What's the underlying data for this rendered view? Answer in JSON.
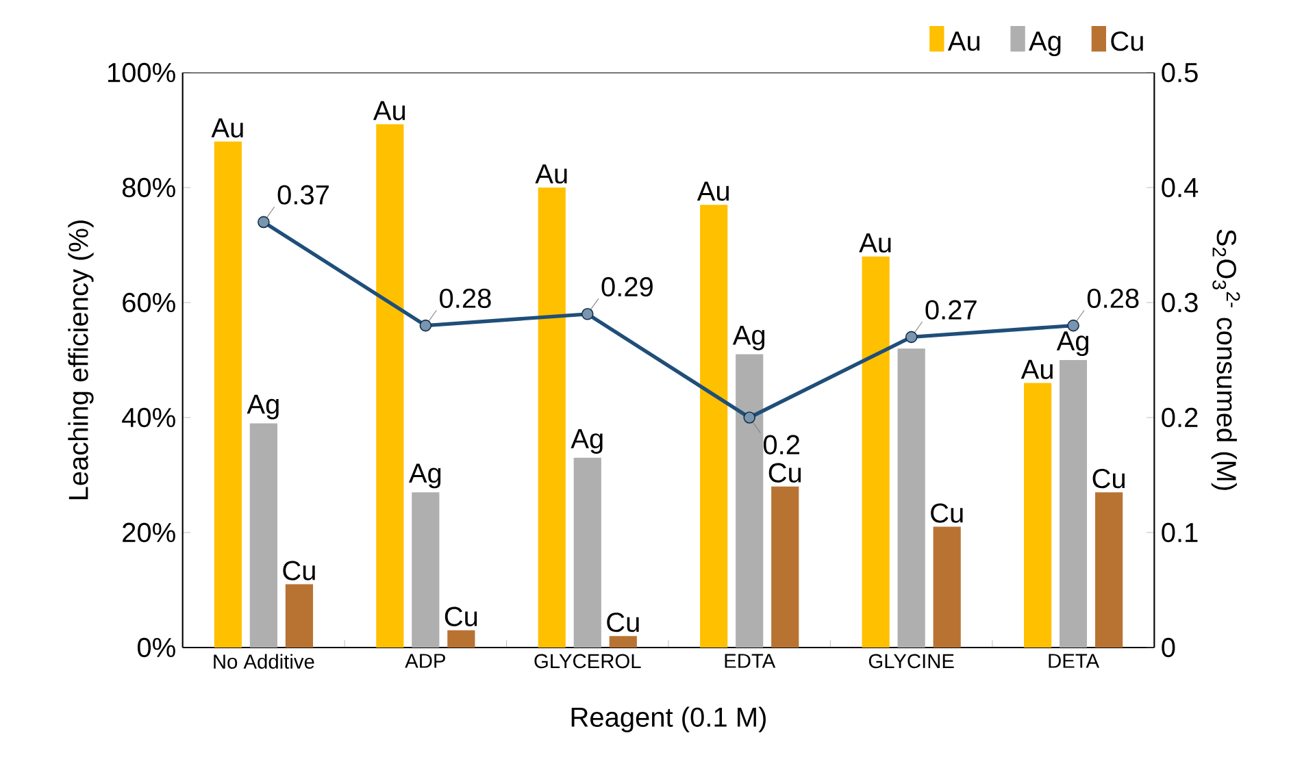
{
  "chart_data": {
    "type": "bar",
    "xlabel": "Reagent (0.1 M)",
    "ylabel": "Leaching efficiency (%)",
    "y2label": "S$_{2}$O$_{3}$$^{2-}$ consumed (M)",
    "categories": [
      "No Additive",
      "ADP",
      "GLYCEROL",
      "EDTA",
      "GLYCINE",
      "DETA"
    ],
    "series": [
      {
        "name": "Au",
        "color": "#ffc000",
        "values": [
          88,
          91,
          80,
          77,
          68,
          46
        ],
        "value_labels": [
          "Au",
          "Au",
          "Au",
          "Au",
          "Au",
          "Au"
        ]
      },
      {
        "name": "Ag",
        "color": "#afafaf",
        "values": [
          39,
          27,
          33,
          51,
          52,
          50
        ],
        "value_labels": [
          "Ag",
          "Ag",
          "Ag",
          "Ag",
          null,
          "Ag"
        ]
      },
      {
        "name": "Cu",
        "color": "#b87333",
        "values": [
          11,
          3,
          2,
          28,
          21,
          27
        ],
        "value_labels": [
          "Cu",
          "Cu",
          "Cu",
          "Cu",
          "Cu",
          "Cu"
        ]
      },
      {
        "type": "line",
        "axis": "y2",
        "color": "#1f4e79",
        "marker": "circle",
        "values": [
          0.37,
          0.28,
          0.29,
          0.2,
          0.27,
          0.28
        ],
        "value_labels": [
          "0.37",
          "0.28",
          "0.29",
          "0.2",
          "0.27",
          "0.28"
        ]
      }
    ],
    "ylim": [
      0,
      100
    ],
    "yticks": [
      {
        "value": 0,
        "label": "0%"
      },
      {
        "value": 20,
        "label": "20%"
      },
      {
        "value": 40,
        "label": "40%"
      },
      {
        "value": 60,
        "label": "60%"
      },
      {
        "value": 80,
        "label": "80%"
      },
      {
        "value": 100,
        "label": "100%"
      }
    ],
    "y2lim": [
      0,
      0.5
    ],
    "y2ticks": [
      0,
      0.1,
      0.2,
      0.3,
      0.4,
      0.5
    ],
    "grid": false,
    "legend": "top right"
  }
}
